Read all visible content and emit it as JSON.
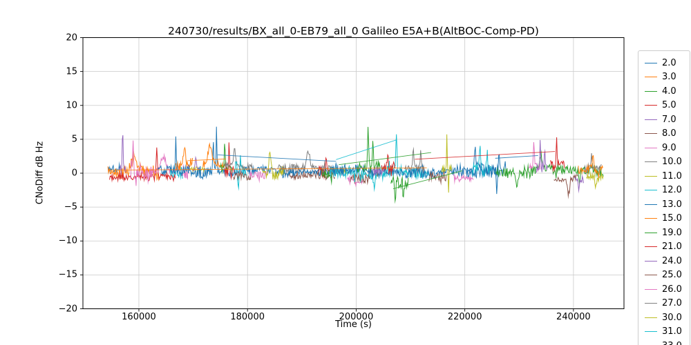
{
  "window": {
    "background": "#ffffff"
  },
  "chart_data": {
    "type": "line",
    "title": "240730/results/BX_all_0-EB79_all_0 Galileo E5A+B(AltBOC-Comp-PD)",
    "xlabel": "Time (s)",
    "ylabel": "CNoDiff dB Hz",
    "xlim": [
      149700,
      249300
    ],
    "ylim": [
      -20,
      20
    ],
    "xticks": [
      160000,
      180000,
      200000,
      220000,
      240000
    ],
    "xtick_labels": [
      "160000",
      "180000",
      "200000",
      "220000",
      "240000"
    ],
    "yticks": [
      20,
      15,
      10,
      5,
      0,
      -5,
      -10,
      -15,
      -20
    ],
    "ytick_labels": [
      "20",
      "15",
      "10",
      "5",
      "0",
      "−5",
      "−10",
      "−15",
      "−20"
    ],
    "grid": true,
    "grid_color": "#c9c9c9",
    "axis_color": "#000000",
    "legend_position": "outside-right, clipped at figure bottom",
    "palette": [
      "#1f77b4",
      "#ff7f0e",
      "#2ca02c",
      "#d62728",
      "#9467bd",
      "#8c564b",
      "#e377c2",
      "#7f7f7f",
      "#bcbd22",
      "#17becf"
    ],
    "legend_entries": [
      {
        "label": "2.0",
        "color": "#1f77b4"
      },
      {
        "label": "3.0",
        "color": "#ff7f0e"
      },
      {
        "label": "4.0",
        "color": "#2ca02c"
      },
      {
        "label": "5.0",
        "color": "#d62728"
      },
      {
        "label": "7.0",
        "color": "#9467bd"
      },
      {
        "label": "8.0",
        "color": "#8c564b"
      },
      {
        "label": "9.0",
        "color": "#e377c2"
      },
      {
        "label": "10.0",
        "color": "#7f7f7f"
      },
      {
        "label": "11.0",
        "color": "#bcbd22"
      },
      {
        "label": "12.0",
        "color": "#17becf"
      },
      {
        "label": "13.0",
        "color": "#1f77b4"
      },
      {
        "label": "15.0",
        "color": "#ff7f0e"
      },
      {
        "label": "19.0",
        "color": "#2ca02c"
      },
      {
        "label": "21.0",
        "color": "#d62728"
      },
      {
        "label": "24.0",
        "color": "#9467bd"
      },
      {
        "label": "25.0",
        "color": "#8c564b"
      },
      {
        "label": "26.0",
        "color": "#e377c2"
      },
      {
        "label": "27.0",
        "color": "#7f7f7f"
      },
      {
        "label": "30.0",
        "color": "#bcbd22"
      },
      {
        "label": "31.0",
        "color": "#17becf"
      },
      {
        "label": "33.0",
        "color": "#1f77b4"
      }
    ],
    "description": "Noisy CNo-difference traces for many satellites, clustered around 0-1 dBHz between t=154300 s and t=245500 s, with occasional spikes up to +7.5 and dips to -4.3; sparse segments appear as straight connecting lines.",
    "segment_format": "[palette_index, x_start_s, x_end_s, base_dBHz, noise_amp_dBHz, spikes:[[x_s, peak_delta_dBHz, width_s], ...]]",
    "series_segments": [
      [
        0,
        154300,
        156600,
        0.5,
        0.9,
        []
      ],
      [
        1,
        154300,
        163800,
        0.1,
        1.25,
        [
          [
            159000,
            1.8,
            500
          ]
        ]
      ],
      [
        3,
        154600,
        166800,
        -0.5,
        0.7,
        [
          [
            163300,
            4.6,
            150
          ]
        ]
      ],
      [
        4,
        156400,
        157700,
        0.8,
        0.8,
        [
          [
            157000,
            6.1,
            110
          ]
        ]
      ],
      [
        6,
        158500,
        169200,
        0.1,
        1.25,
        [
          [
            158900,
            4.2,
            130
          ],
          [
            164500,
            2.0,
            700
          ]
        ]
      ],
      [
        9,
        165800,
        168200,
        0.3,
        0.95,
        []
      ],
      [
        1,
        166800,
        169900,
        1.0,
        1.05,
        [
          [
            168400,
            2.9,
            350
          ]
        ]
      ],
      [
        8,
        169400,
        172200,
        0.8,
        0.8,
        []
      ],
      [
        4,
        169900,
        171400,
        0.4,
        0.85,
        [
          [
            170500,
            1.9,
            160
          ]
        ]
      ],
      [
        0,
        163500,
        187200,
        0.35,
        1.2,
        [
          [
            166800,
            4.9,
            110
          ],
          [
            174300,
            7.0,
            90
          ],
          [
            173700,
            4.2,
            160
          ]
        ]
      ],
      [
        1,
        171800,
        175900,
        1.3,
        0.95,
        [
          [
            173100,
            2.6,
            450
          ]
        ]
      ],
      [
        2,
        175000,
        177300,
        0.7,
        1.0,
        [
          [
            175800,
            3.9,
            110
          ]
        ]
      ],
      [
        3,
        175700,
        177600,
        0.5,
        0.9,
        [
          [
            176600,
            3.9,
            100
          ]
        ]
      ],
      [
        7,
        175800,
        180900,
        1.1,
        0.8,
        [
          [
            177600,
            2.4,
            280
          ]
        ]
      ],
      [
        9,
        177700,
        179900,
        0.2,
        1.4,
        [
          [
            178700,
            2.7,
            140
          ],
          [
            178300,
            -2.4,
            120
          ]
        ]
      ],
      [
        5,
        177400,
        180600,
        -0.6,
        0.8,
        []
      ],
      [
        6,
        180400,
        183600,
        -0.3,
        1.15,
        []
      ],
      [
        8,
        182700,
        186900,
        -0.2,
        1.1,
        [
          [
            184100,
            2.4,
            320
          ]
        ]
      ],
      [
        7,
        185500,
        195400,
        0.85,
        0.75,
        [
          [
            191200,
            2.2,
            350
          ]
        ]
      ],
      [
        5,
        187400,
        196100,
        -0.35,
        0.7,
        []
      ],
      [
        0,
        186400,
        196600,
        0.2,
        1.0,
        []
      ],
      [
        8,
        195400,
        198600,
        0.5,
        0.95,
        []
      ],
      [
        3,
        193100,
        195900,
        0.3,
        0.9,
        [
          [
            194500,
            2.2,
            160
          ]
        ]
      ],
      [
        2,
        193700,
        195600,
        -0.5,
        0.95,
        []
      ],
      [
        6,
        198400,
        201600,
        -1.0,
        0.9,
        []
      ],
      [
        5,
        198900,
        202600,
        -0.8,
        0.8,
        []
      ],
      [
        9,
        195200,
        213600,
        0.0,
        1.25,
        [
          [
            207400,
            4.9,
            170
          ],
          [
            203400,
            -1.8,
            160
          ]
        ]
      ],
      [
        0,
        195400,
        226600,
        0.25,
        1.2,
        [
          [
            225900,
            -2.9,
            140
          ]
        ]
      ],
      [
        2,
        200200,
        204400,
        1.1,
        1.3,
        [
          [
            202200,
            6.2,
            140
          ],
          [
            203100,
            3.8,
            130
          ]
        ]
      ],
      [
        2,
        206400,
        209600,
        -1.1,
        1.2,
        [
          [
            207200,
            -2.8,
            140
          ],
          [
            208700,
            -2.3,
            130
          ]
        ]
      ],
      [
        3,
        204700,
        207300,
        0.8,
        0.9,
        [
          [
            205800,
            2.3,
            140
          ]
        ]
      ],
      [
        4,
        202900,
        205100,
        0.3,
        0.8,
        []
      ],
      [
        7,
        208900,
        212600,
        0.8,
        0.9,
        [
          [
            210500,
            2.6,
            160
          ],
          [
            211900,
            2.3,
            130
          ]
        ]
      ],
      [
        5,
        213400,
        216600,
        -0.5,
        0.9,
        []
      ],
      [
        8,
        215700,
        217600,
        0.3,
        1.0,
        [
          [
            216700,
            5.3,
            90
          ],
          [
            217000,
            -3.4,
            80
          ]
        ]
      ],
      [
        6,
        217900,
        221600,
        -0.8,
        0.9,
        []
      ],
      [
        0,
        220400,
        227600,
        0.8,
        1.0,
        [
          [
            221900,
            2.9,
            220
          ],
          [
            226300,
            3.3,
            120
          ]
        ]
      ],
      [
        9,
        221400,
        225100,
        0.4,
        1.1,
        [
          [
            222800,
            3.3,
            160
          ],
          [
            224100,
            2.9,
            150
          ]
        ]
      ],
      [
        2,
        225700,
        245500,
        0.45,
        1.15,
        [
          [
            229600,
            -2.4,
            220
          ],
          [
            234000,
            2.0,
            350
          ],
          [
            241100,
            -1.8,
            160
          ]
        ]
      ],
      [
        6,
        231700,
        233900,
        1.2,
        0.95,
        [
          [
            232700,
            3.9,
            120
          ]
        ]
      ],
      [
        4,
        233100,
        235400,
        0.8,
        0.95,
        [
          [
            233900,
            4.0,
            100
          ],
          [
            234700,
            3.6,
            100
          ]
        ]
      ],
      [
        3,
        235700,
        238400,
        1.0,
        0.95,
        [
          [
            236900,
            4.6,
            100
          ]
        ]
      ],
      [
        5,
        236400,
        240900,
        -0.9,
        0.9,
        [
          [
            239100,
            -2.2,
            280
          ]
        ]
      ],
      [
        4,
        240200,
        241900,
        -0.7,
        0.85,
        [
          [
            241000,
            -1.6,
            160
          ]
        ]
      ],
      [
        7,
        241900,
        245300,
        0.6,
        0.85,
        [
          [
            243300,
            2.2,
            140
          ]
        ]
      ],
      [
        1,
        240900,
        245500,
        0.5,
        0.95,
        [
          [
            243600,
            2.4,
            160
          ]
        ]
      ],
      [
        8,
        242400,
        245500,
        -0.6,
        0.85,
        [
          [
            244100,
            -1.9,
            160
          ]
        ]
      ]
    ],
    "trend_line_format": "[palette_index, x0_s, y0_dBHz, x1_s, y1_dBHz]",
    "trend_lines": [
      [
        1,
        154300,
        0.45,
        213000,
        0.8
      ],
      [
        9,
        196300,
        2.0,
        207400,
        4.9
      ],
      [
        2,
        196800,
        1.25,
        213800,
        3.05
      ],
      [
        0,
        174500,
        2.7,
        196300,
        1.75
      ],
      [
        2,
        206800,
        -2.3,
        219500,
        0.35
      ],
      [
        3,
        210800,
        2.05,
        236600,
        3.2
      ],
      [
        1,
        169000,
        1.85,
        176000,
        2.1
      ],
      [
        0,
        225600,
        2.2,
        233500,
        2.6
      ]
    ],
    "noise": {
      "dt_s": 110,
      "seed": 7
    }
  }
}
